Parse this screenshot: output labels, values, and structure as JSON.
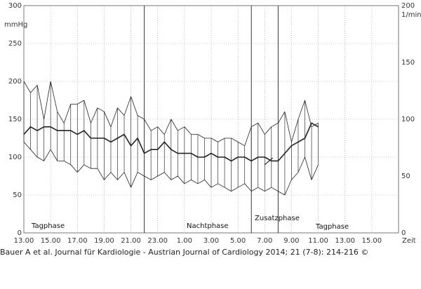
{
  "chart_data": {
    "type": "line",
    "left_unit": "mmHg",
    "right_unit": "1/min",
    "xlabel": "Zeit",
    "x_ticks": [
      "13.00",
      "15.00",
      "17.00",
      "19.00",
      "21.00",
      "23.00",
      "1.00",
      "3.00",
      "5.00",
      "7.00",
      "9.00",
      "11.00",
      "13.00",
      "15.00"
    ],
    "left_ticks": [
      "0",
      "50",
      "100",
      "150",
      "200",
      "250",
      "300"
    ],
    "right_ticks": [
      "0",
      "50",
      "100",
      "150",
      "200"
    ],
    "ylim_left": [
      0,
      300
    ],
    "ylim_right": [
      0,
      200
    ],
    "grid": true,
    "phase_labels": [
      "Tagphase",
      "Nachtphase",
      "Zusatzphase",
      "Tagphase"
    ],
    "phase_markers_hours": [
      22,
      30,
      32
    ],
    "series": [
      {
        "axis": "left",
        "x": [
          13.0,
          13.5,
          14.0,
          14.5,
          15.0,
          15.5,
          16.0,
          16.5,
          17.0,
          17.5,
          18.0,
          18.5,
          19.0,
          19.5,
          20.0,
          20.5,
          21.0,
          21.5,
          22.0,
          22.5,
          23.0,
          23.5,
          24.0,
          24.5,
          25.0,
          25.5,
          26.0,
          26.5,
          27.0,
          27.5,
          28.0,
          28.5,
          29.0,
          29.5,
          30.0,
          30.5,
          31.0,
          31.5,
          32.0,
          32.5,
          33.0,
          33.5,
          34.0,
          34.5,
          35.0
        ],
        "values": [
          200,
          185,
          195,
          150,
          200,
          160,
          145,
          170,
          170,
          175,
          145,
          165,
          160,
          140,
          165,
          155,
          180,
          155,
          150,
          135,
          140,
          130,
          150,
          135,
          140,
          130,
          130,
          125,
          125,
          120,
          125,
          125,
          120,
          115,
          140,
          145,
          130,
          140,
          145,
          160,
          120,
          150,
          175,
          140,
          145
        ]
      },
      {
        "axis": "left",
        "x": [
          13.0,
          13.5,
          14.0,
          14.5,
          15.0,
          15.5,
          16.0,
          16.5,
          17.0,
          17.5,
          18.0,
          18.5,
          19.0,
          19.5,
          20.0,
          20.5,
          21.0,
          21.5,
          22.0,
          22.5,
          23.0,
          23.5,
          24.0,
          24.5,
          25.0,
          25.5,
          26.0,
          26.5,
          27.0,
          27.5,
          28.0,
          28.5,
          29.0,
          29.5,
          30.0,
          30.5,
          31.0,
          31.5,
          32.0,
          32.5,
          33.0,
          33.5,
          34.0,
          34.5,
          35.0
        ],
        "values": [
          130,
          140,
          135,
          140,
          140,
          135,
          135,
          135,
          130,
          135,
          125,
          125,
          125,
          120,
          125,
          130,
          115,
          125,
          105,
          110,
          110,
          120,
          110,
          105,
          105,
          105,
          100,
          100,
          105,
          100,
          100,
          95,
          100,
          100,
          95,
          100,
          100,
          95,
          95,
          105,
          115,
          120,
          125,
          145,
          140
        ]
      },
      {
        "axis": "left",
        "x": [
          13.0,
          13.5,
          14.0,
          14.5,
          15.0,
          15.5,
          16.0,
          16.5,
          17.0,
          17.5,
          18.0,
          18.5,
          19.0,
          19.5,
          20.0,
          20.5,
          21.0,
          21.5,
          22.0,
          22.5,
          23.0,
          23.5,
          24.0,
          24.5,
          25.0,
          25.5,
          26.0,
          26.5,
          27.0,
          27.5,
          28.0,
          28.5,
          29.0,
          29.5,
          30.0,
          30.5,
          31.0,
          31.5,
          32.0,
          32.5,
          33.0,
          33.5,
          34.0,
          34.5,
          35.0
        ],
        "values": [
          120,
          110,
          100,
          95,
          110,
          95,
          95,
          90,
          80,
          90,
          85,
          85,
          70,
          80,
          70,
          80,
          60,
          80,
          75,
          70,
          75,
          80,
          70,
          75,
          65,
          70,
          65,
          70,
          60,
          65,
          60,
          55,
          60,
          65,
          55,
          60,
          55,
          60,
          55,
          50,
          70,
          80,
          100,
          70,
          90
        ]
      },
      {
        "axis": "right",
        "x": [
          31.0,
          31.3,
          31.6
        ],
        "values": [
          60,
          63,
          66
        ]
      }
    ]
  },
  "caption": "Bauer A et al. Journal für Kardiologie - Austrian Journal of Cardiology 2014; 21 (7-8): 214-216 ©"
}
